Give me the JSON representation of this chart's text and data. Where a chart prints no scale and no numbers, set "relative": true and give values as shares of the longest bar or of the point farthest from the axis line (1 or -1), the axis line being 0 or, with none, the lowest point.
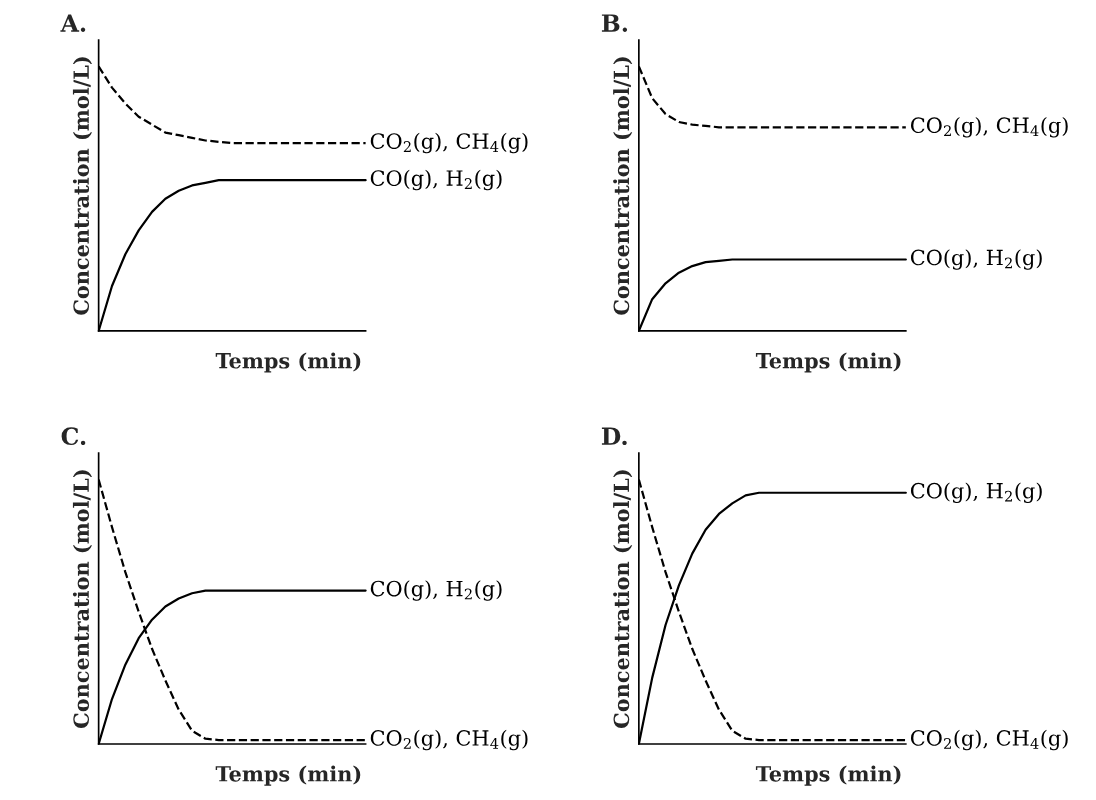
{
  "chart_data": [
    {
      "type": "line",
      "title": "A.",
      "xlabel": "Temps (min)",
      "ylabel": "Concentration (mol/L)",
      "relative": true,
      "categories": [
        null,
        null,
        null,
        null,
        null,
        null,
        null,
        null,
        null,
        null,
        null,
        null,
        null,
        null,
        null,
        null,
        null,
        null,
        null,
        null,
        null
      ],
      "series": [
        {
          "name": "CO$_{2}$(g), CH$_{4}$(g)",
          "color": "#000000",
          "line_style": "dashed",
          "values": [
            1,
            0.92,
            0.86,
            0.81,
            0.78,
            0.75,
            0.74,
            0.73,
            0.72,
            0.715,
            0.71,
            0.71,
            0.71,
            0.71,
            0.71,
            0.71,
            0.71,
            0.71,
            0.71,
            0.71,
            0.71
          ]
        },
        {
          "name": "CO(g), H$_{2}$(g)",
          "color": "#000000",
          "line_style": "solid",
          "values": [
            0,
            0.17,
            0.29,
            0.38,
            0.45,
            0.5,
            0.53,
            0.55,
            0.56,
            0.57,
            0.57,
            0.57,
            0.57,
            0.57,
            0.57,
            0.57,
            0.57,
            0.57,
            0.57,
            0.57,
            0.57
          ]
        }
      ]
    },
    {
      "type": "line",
      "title": "B.",
      "xlabel": "Temps (min)",
      "ylabel": "Concentration (mol/L)",
      "relative": true,
      "categories": [
        null,
        null,
        null,
        null,
        null,
        null,
        null,
        null,
        null,
        null,
        null,
        null,
        null,
        null,
        null,
        null,
        null,
        null,
        null,
        null,
        null
      ],
      "series": [
        {
          "name": "CO$_{2}$(g), CH$_{4}$(g)",
          "color": "#000000",
          "line_style": "dashed",
          "values": [
            1,
            0.88,
            0.82,
            0.79,
            0.78,
            0.775,
            0.77,
            0.77,
            0.77,
            0.77,
            0.77,
            0.77,
            0.77,
            0.77,
            0.77,
            0.77,
            0.77,
            0.77,
            0.77,
            0.77,
            0.77
          ]
        },
        {
          "name": "CO(g), H$_{2}$(g)",
          "color": "#000000",
          "line_style": "solid",
          "values": [
            0,
            0.12,
            0.18,
            0.22,
            0.245,
            0.26,
            0.265,
            0.27,
            0.27,
            0.27,
            0.27,
            0.27,
            0.27,
            0.27,
            0.27,
            0.27,
            0.27,
            0.27,
            0.27,
            0.27,
            0.27
          ]
        }
      ]
    },
    {
      "type": "line",
      "title": "C.",
      "xlabel": "Temps (min)",
      "ylabel": "Concentration (mol/L)",
      "relative": true,
      "categories": [
        null,
        null,
        null,
        null,
        null,
        null,
        null,
        null,
        null,
        null,
        null,
        null,
        null,
        null,
        null,
        null,
        null,
        null,
        null,
        null,
        null
      ],
      "series": [
        {
          "name": "CO(g), H$_{2}$(g)",
          "color": "#000000",
          "line_style": "solid",
          "values": [
            0,
            0.17,
            0.3,
            0.4,
            0.47,
            0.52,
            0.55,
            0.57,
            0.58,
            0.58,
            0.58,
            0.58,
            0.58,
            0.58,
            0.58,
            0.58,
            0.58,
            0.58,
            0.58,
            0.58,
            0.58
          ]
        },
        {
          "name": "CO$_{2}$(g), CH$_{4}$(g)",
          "color": "#000000",
          "line_style": "dashed",
          "values": [
            1,
            0.82,
            0.65,
            0.5,
            0.36,
            0.24,
            0.13,
            0.05,
            0.02,
            0.015,
            0.015,
            0.015,
            0.015,
            0.015,
            0.015,
            0.015,
            0.015,
            0.015,
            0.015,
            0.015,
            0.015
          ]
        }
      ]
    },
    {
      "type": "line",
      "title": "D.",
      "xlabel": "Temps (min)",
      "ylabel": "Concentration (mol/L)",
      "relative": true,
      "categories": [
        null,
        null,
        null,
        null,
        null,
        null,
        null,
        null,
        null,
        null,
        null,
        null,
        null,
        null,
        null,
        null,
        null,
        null,
        null,
        null,
        null
      ],
      "series": [
        {
          "name": "CO(g), H$_{2}$(g)",
          "color": "#000000",
          "line_style": "solid",
          "values": [
            0,
            0.25,
            0.45,
            0.6,
            0.72,
            0.81,
            0.87,
            0.91,
            0.94,
            0.95,
            0.95,
            0.95,
            0.95,
            0.95,
            0.95,
            0.95,
            0.95,
            0.95,
            0.95,
            0.95,
            0.95
          ]
        },
        {
          "name": "CO$_{2}$(g), CH$_{4}$(g)",
          "color": "#000000",
          "line_style": "dashed",
          "values": [
            1,
            0.82,
            0.65,
            0.5,
            0.36,
            0.24,
            0.13,
            0.05,
            0.02,
            0.015,
            0.015,
            0.015,
            0.015,
            0.015,
            0.015,
            0.015,
            0.015,
            0.015,
            0.015,
            0.015,
            0.015
          ]
        }
      ]
    }
  ]
}
